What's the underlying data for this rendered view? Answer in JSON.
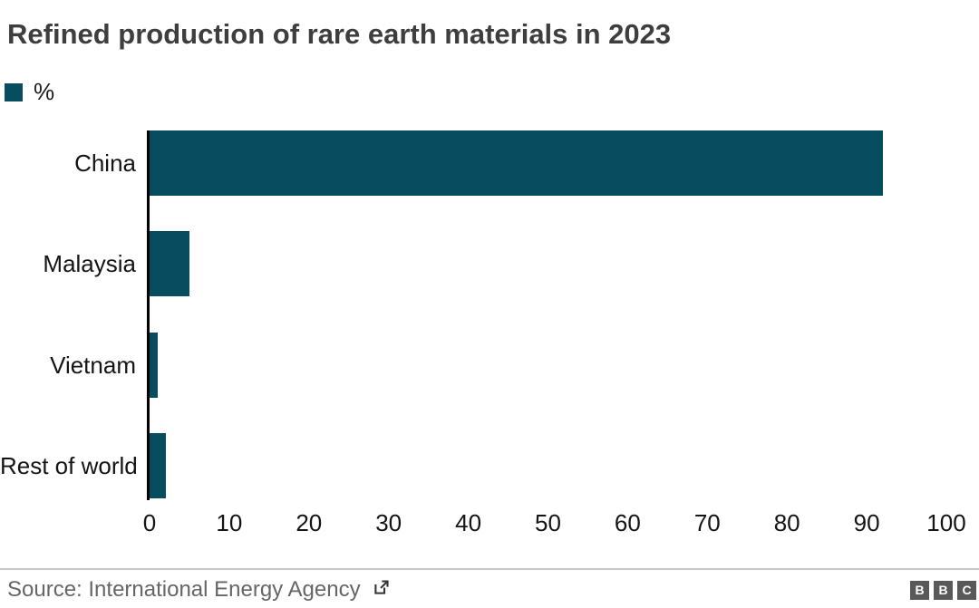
{
  "title": "Refined production of rare earth materials in 2023",
  "legend": {
    "label": "%",
    "swatch_color": "#084C60"
  },
  "chart_data": {
    "type": "bar",
    "orientation": "horizontal",
    "title": "Refined production of rare earth materials in 2023",
    "series_name": "%",
    "categories": [
      "China",
      "Malaysia",
      "Vietnam",
      "Rest of world"
    ],
    "values": [
      92,
      5,
      1,
      2
    ],
    "unit": "%",
    "xlim": [
      0,
      100
    ],
    "x_ticks": [
      0,
      10,
      20,
      30,
      40,
      50,
      60,
      70,
      80,
      90,
      100
    ],
    "x_tick_labels": [
      "0",
      "10",
      "20",
      "30",
      "40",
      "50",
      "60",
      "70",
      "80",
      "90",
      "100"
    ],
    "grid": false,
    "legend_position": "top-left",
    "bar_color": "#084C60"
  },
  "footer": {
    "source_label": "Source: International Energy Agency",
    "link_icon": "external-link-icon",
    "logo_letters": [
      "B",
      "B",
      "C"
    ]
  },
  "colors": {
    "bar": "#084C60",
    "title_text": "#3e3e3e",
    "label_text": "#141414",
    "axis": "#000000",
    "source_text": "#666666",
    "divider": "#c8c8c8",
    "logo_background": "#595959"
  }
}
